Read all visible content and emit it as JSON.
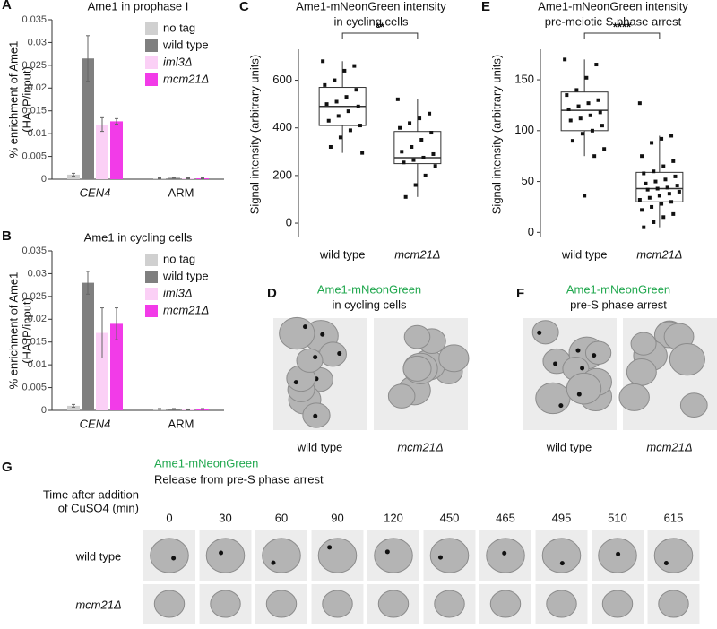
{
  "chart_data": [
    {
      "type": "bar",
      "panel": "A",
      "title": "Ame1 in prophase I",
      "y_label": [
        "% enrichment of Ame1",
        "(HA IP/input)"
      ],
      "categories": [
        "CEN4",
        "ARM"
      ],
      "series": [
        {
          "name": "no tag",
          "color": "#d0d0d0",
          "values": [
            0.001,
            0.0002
          ],
          "errors": [
            0.0003,
            0.0001
          ]
        },
        {
          "name": "wild type",
          "color": "#7f7f7f",
          "values": [
            0.0265,
            0.0003
          ],
          "errors": [
            0.005,
            0.0001
          ]
        },
        {
          "name": "iml3Δ",
          "color": "#fbd0f6",
          "values": [
            0.012,
            0.0002
          ],
          "errors": [
            0.0015,
            0.0001
          ]
        },
        {
          "name": "mcm21Δ",
          "color": "#f23be8",
          "values": [
            0.0127,
            0.0002
          ],
          "errors": [
            0.0006,
            0.0001
          ]
        }
      ],
      "ylim": [
        0,
        0.035
      ],
      "yticks": [
        0,
        0.005,
        0.01,
        0.015,
        0.02,
        0.025,
        0.03,
        0.035
      ]
    },
    {
      "type": "bar",
      "panel": "B",
      "title": "Ame1 in cycling cells",
      "y_label": [
        "% enrichment of Ame1",
        "(HA IP/input)"
      ],
      "categories": [
        "CEN4",
        "ARM"
      ],
      "series": [
        {
          "name": "no tag",
          "color": "#d0d0d0",
          "values": [
            0.001,
            0.0003
          ],
          "errors": [
            0.0003,
            0.0001
          ]
        },
        {
          "name": "wild type",
          "color": "#7f7f7f",
          "values": [
            0.028,
            0.0003
          ],
          "errors": [
            0.0025,
            0.0001
          ]
        },
        {
          "name": "iml3Δ",
          "color": "#fbd0f6",
          "values": [
            0.017,
            0.0002
          ],
          "errors": [
            0.0055,
            0.0001
          ]
        },
        {
          "name": "mcm21Δ",
          "color": "#f23be8",
          "values": [
            0.019,
            0.0003
          ],
          "errors": [
            0.0035,
            0.0001
          ]
        }
      ],
      "ylim": [
        0,
        0.035
      ],
      "yticks": [
        0,
        0.005,
        0.01,
        0.015,
        0.02,
        0.025,
        0.03,
        0.035
      ]
    },
    {
      "type": "box",
      "panel": "C",
      "title": [
        "Ame1-mNeonGreen intensity",
        "in cycling cells"
      ],
      "y_label": "Signal intensity (arbitrary units)",
      "categories": [
        "wild type",
        "mcm21Δ"
      ],
      "significance": "**",
      "boxes": [
        {
          "min": 295,
          "q1": 410,
          "median": 490,
          "q3": 570,
          "max": 680
        },
        {
          "min": 110,
          "q1": 250,
          "median": 275,
          "q3": 385,
          "max": 520
        }
      ],
      "points": [
        [
          680,
          660,
          640,
          600,
          580,
          560,
          530,
          510,
          500,
          490,
          470,
          450,
          430,
          410,
          390,
          360,
          320,
          295
        ],
        [
          520,
          460,
          440,
          420,
          400,
          380,
          350,
          320,
          300,
          290,
          275,
          265,
          255,
          240,
          200,
          160,
          110
        ]
      ],
      "ylim": [
        -60,
        730
      ],
      "yticks": [
        0,
        200,
        400,
        600
      ]
    },
    {
      "type": "box",
      "panel": "E",
      "title": [
        "Ame1-mNeonGreen intensity",
        "pre-meiotic S phase arrest"
      ],
      "y_label": "Signal intensity (arbitrary units)",
      "categories": [
        "wild type",
        "mcm21Δ"
      ],
      "significance": "****",
      "boxes": [
        {
          "min": 75,
          "q1": 100,
          "median": 120,
          "q3": 138,
          "max": 170
        },
        {
          "min": 5,
          "q1": 30,
          "median": 43,
          "q3": 59,
          "max": 95
        }
      ],
      "points": [
        [
          170,
          165,
          152,
          140,
          135,
          130,
          127,
          124,
          121,
          118,
          115,
          112,
          110,
          105,
          100,
          97,
          90,
          82,
          75,
          36
        ],
        [
          127,
          95,
          92,
          88,
          75,
          70,
          65,
          60,
          58,
          55,
          52,
          50,
          48,
          46,
          44,
          43,
          42,
          40,
          38,
          36,
          34,
          32,
          30,
          28,
          25,
          22,
          18,
          15,
          10,
          5
        ]
      ],
      "ylim": [
        -5,
        180
      ],
      "yticks": [
        0,
        50,
        100,
        150
      ]
    }
  ],
  "micrographs": {
    "D": {
      "panel": "D",
      "title": "Ame1-mNeonGreen",
      "subtitle": "in cycling cells",
      "labels": [
        "wild type",
        "mcm21Δ"
      ]
    },
    "F": {
      "panel": "F",
      "title": "Ame1-mNeonGreen",
      "subtitle": "pre-S phase arrest",
      "labels": [
        "wild type",
        "mcm21Δ"
      ]
    },
    "G": {
      "panel": "G",
      "title": "Ame1-mNeonGreen",
      "subtitle": "Release from pre-S phase arrest",
      "time_label": [
        "Time after addition",
        "of CuSO4 (min)"
      ],
      "times": [
        0,
        30,
        60,
        90,
        120,
        450,
        465,
        495,
        510,
        615
      ],
      "rows": [
        "wild type",
        "mcm21Δ"
      ]
    }
  }
}
